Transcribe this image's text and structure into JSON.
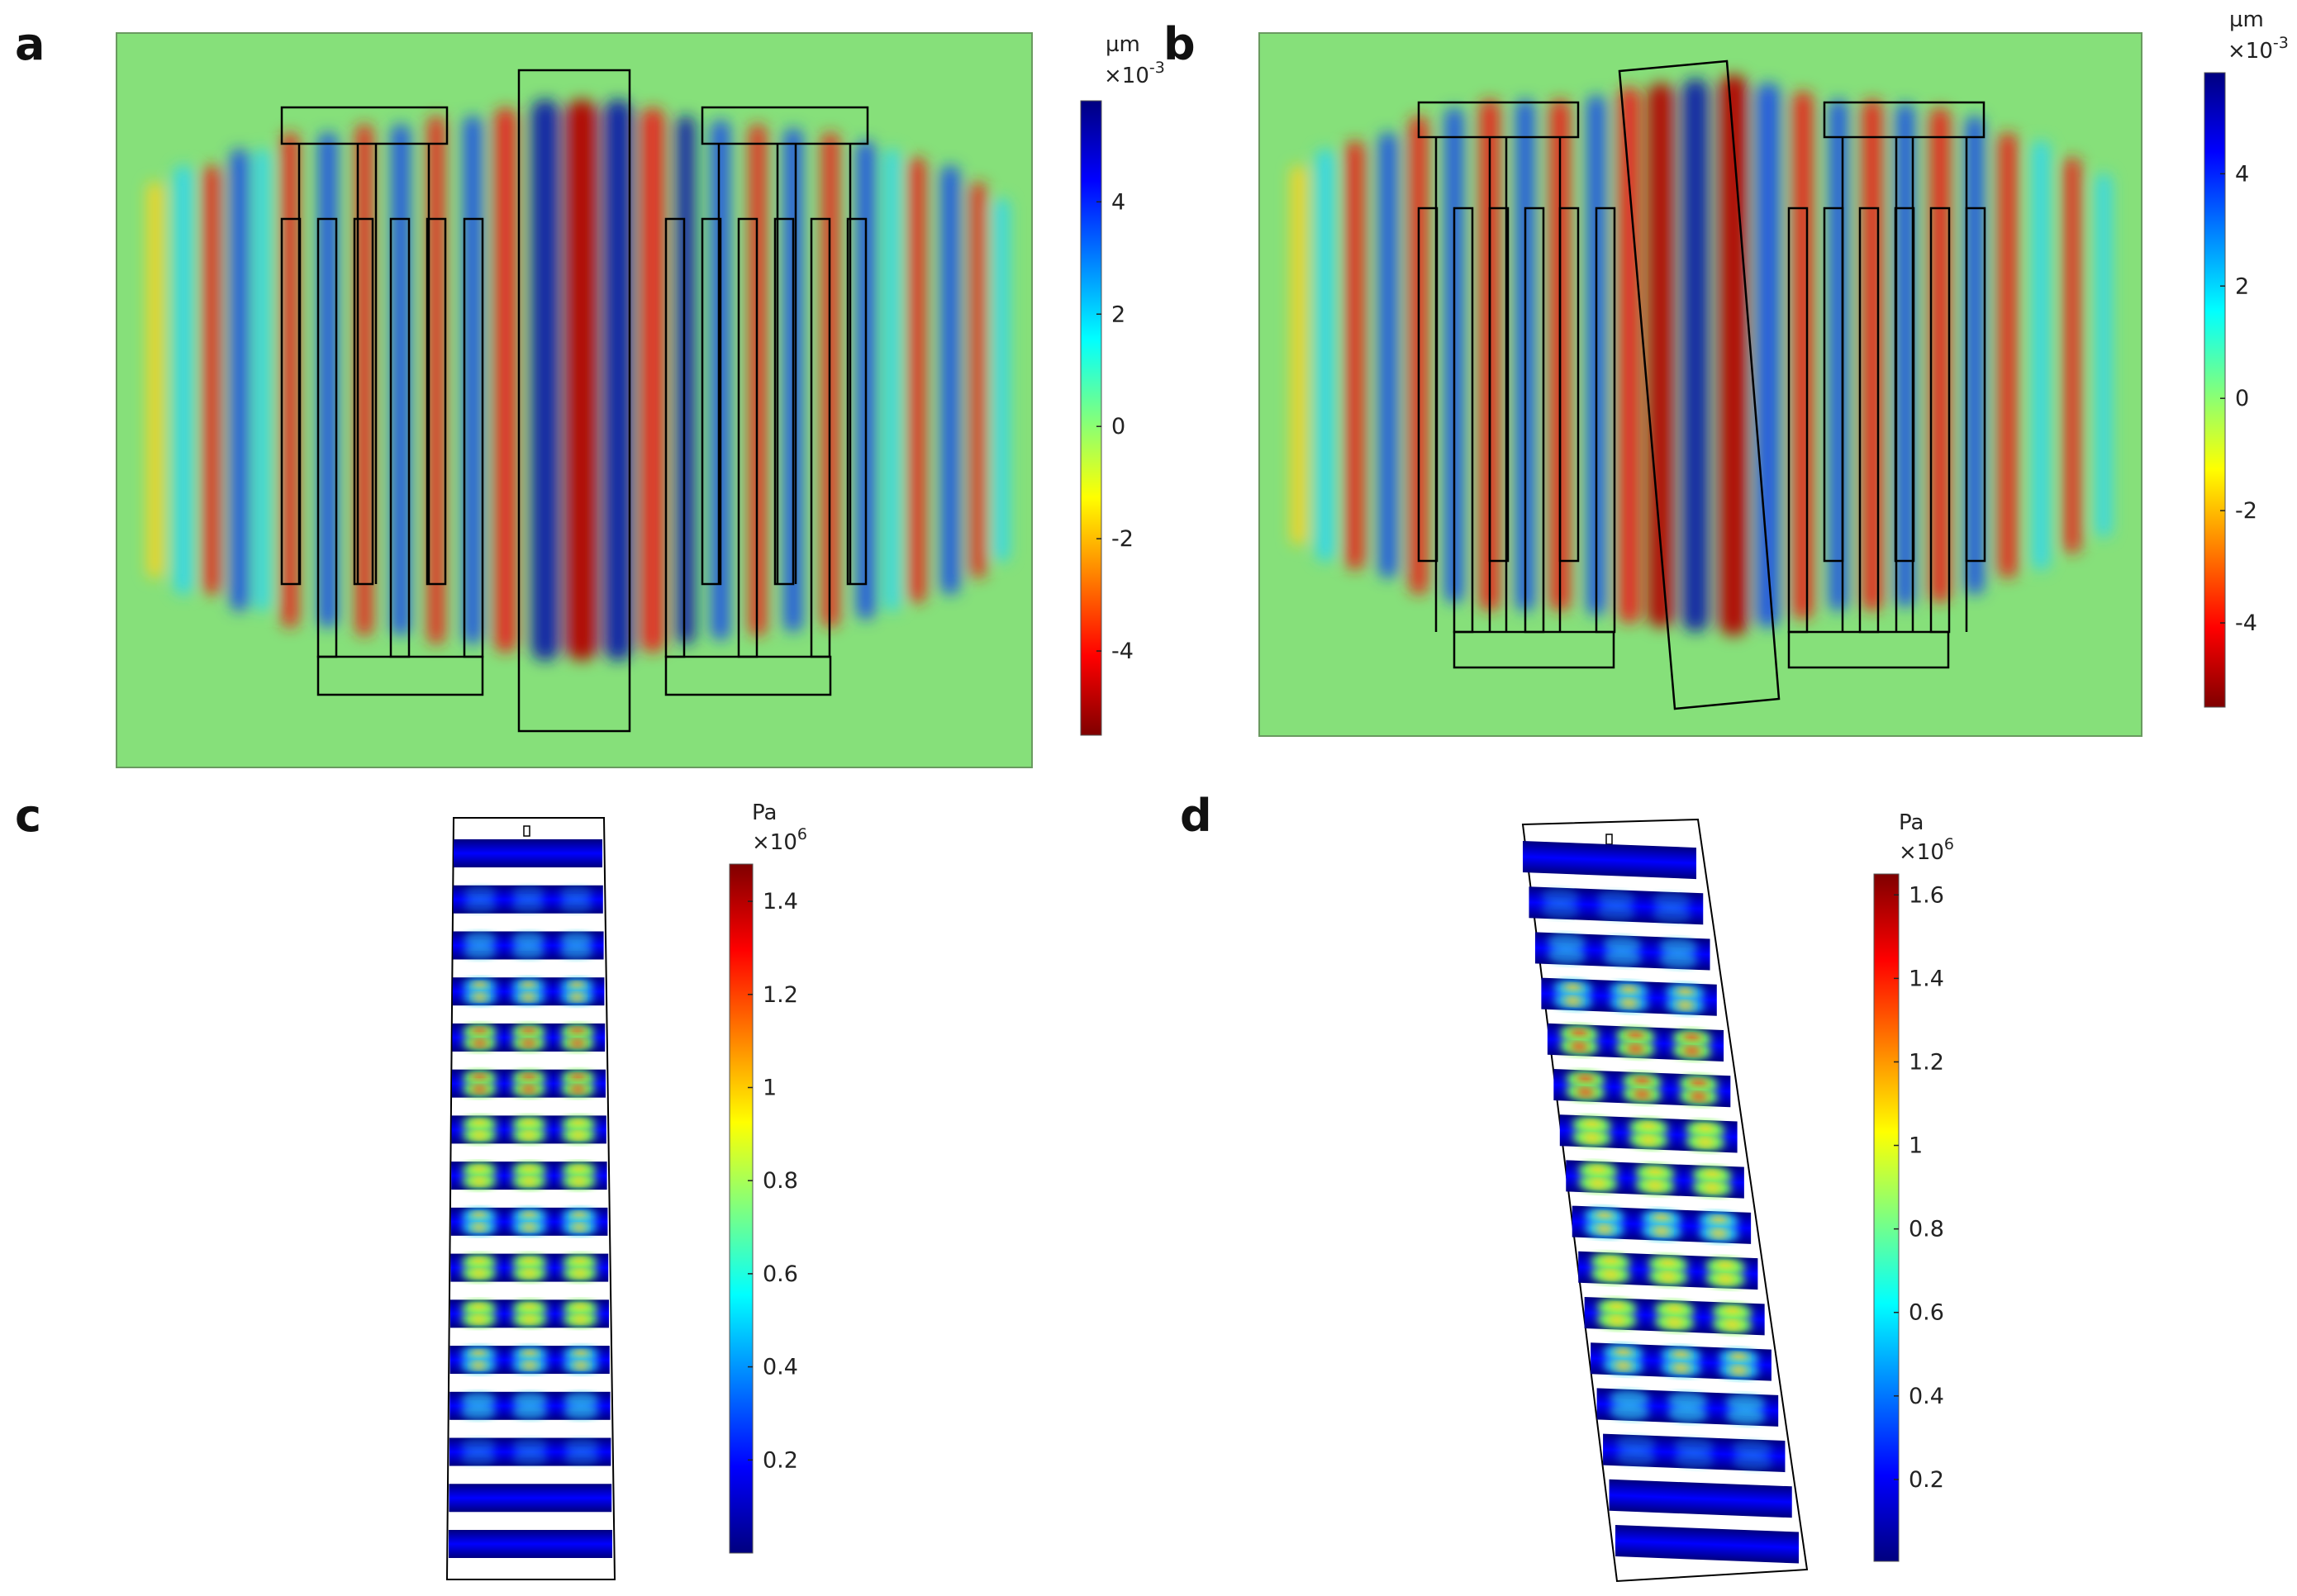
{
  "panel_labels": {
    "a": "a",
    "b": "b",
    "c": "c",
    "d": "d"
  },
  "colorbar_displacement": {
    "unit": "µm",
    "scale_base": "×10",
    "scale_exp": "-3",
    "ticks": [
      "4",
      "2",
      "0",
      "-2",
      "-4"
    ],
    "tick_values": [
      4,
      2,
      0,
      -2,
      -4
    ],
    "range": [
      -5.5,
      5.8
    ]
  },
  "colorbar_pressure_c": {
    "unit": "Pa",
    "scale_base": "×10",
    "scale_exp": "6",
    "ticks": [
      "1.4",
      "1.2",
      "1",
      "0.8",
      "0.6",
      "0.4",
      "0.2"
    ],
    "tick_values": [
      1.4,
      1.2,
      1.0,
      0.8,
      0.6,
      0.4,
      0.2
    ],
    "range": [
      0.0,
      1.48
    ]
  },
  "colorbar_pressure_d": {
    "unit": "Pa",
    "scale_base": "×10",
    "scale_exp": "6",
    "ticks": [
      "1.6",
      "1.4",
      "1.2",
      "1",
      "0.8",
      "0.6",
      "0.4",
      "0.2"
    ],
    "tick_values": [
      1.6,
      1.4,
      1.2,
      1.0,
      0.8,
      0.6,
      0.4,
      0.2
    ],
    "range": [
      0.0,
      1.65
    ]
  },
  "colors": {
    "jet_low": "#00007f",
    "jet_mid": "#7fff7f",
    "jet_high": "#7f0000",
    "field_background": "#86e07a",
    "outline": "#000000"
  }
}
